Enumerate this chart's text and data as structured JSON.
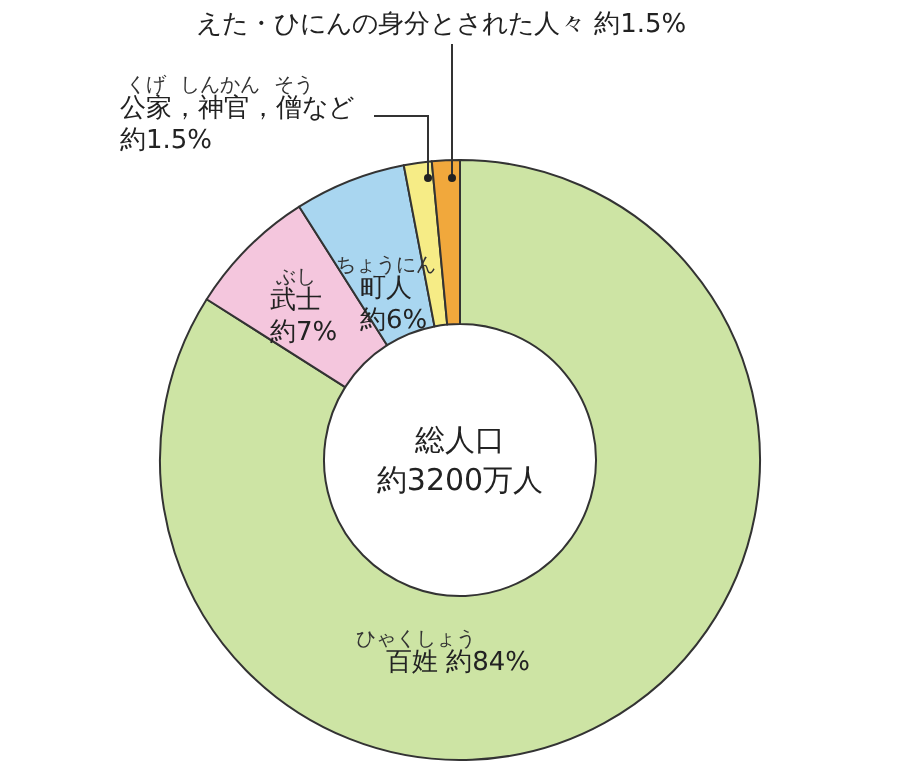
{
  "chart_data": {
    "type": "donut",
    "title": "総人口",
    "subtitle": "約3200万人",
    "categories": [
      "百姓",
      "武士",
      "町人",
      "公家，神官，僧など",
      "えた・ひにんの身分とされた人々"
    ],
    "values": [
      84,
      7,
      6,
      1.5,
      1.5
    ],
    "colors": [
      "#cde4a4",
      "#f4c6dd",
      "#a9d6f0",
      "#f6ec86",
      "#f1a83c"
    ],
    "value_labels": [
      "約84%",
      "約7%",
      "約6%",
      "約1.5%",
      "約1.5%"
    ],
    "annotations": [
      {
        "text": "ひゃくしょう",
        "x": "百姓"
      },
      {
        "text": "ぶし",
        "x": "武士"
      },
      {
        "text": "ちょうにん",
        "x": "町人"
      },
      {
        "text": "くげ",
        "x": "公家，神官，僧など"
      },
      {
        "text": "しんかん",
        "x": "公家，神官，僧など"
      },
      {
        "text": "そう",
        "x": "公家，神官，僧など"
      }
    ]
  }
}
